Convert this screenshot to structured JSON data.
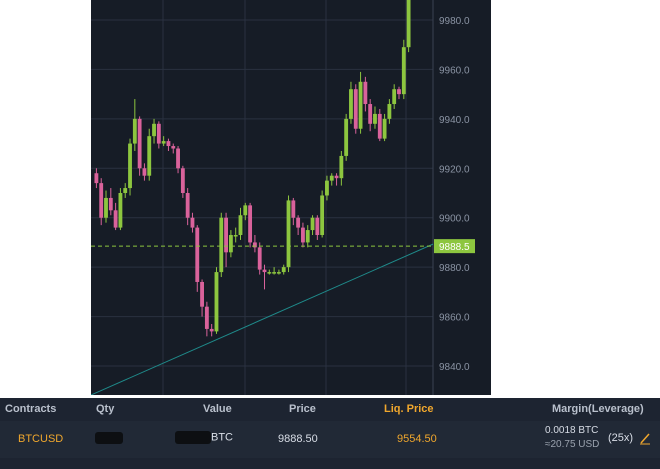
{
  "chart": {
    "price_axis_labels": [
      "9980.0",
      "9960.0",
      "9940.0",
      "9920.0",
      "9900.0",
      "9880.0",
      "9860.0",
      "9840.0"
    ],
    "current_price_label": "9888.5",
    "colors": {
      "background": "#161c26",
      "up": "#8dc63f",
      "down": "#d9629b",
      "grid": "#2a3140",
      "price_line": "#8dc63f",
      "trend_line": "#1f8a8a"
    }
  },
  "chart_data": {
    "type": "candlestick",
    "price_range": [
      9832,
      9987
    ],
    "current_price": 9888.5,
    "candles": [
      [
        9918,
        9914,
        9920,
        9912
      ],
      [
        9914,
        9900,
        9916,
        9897
      ],
      [
        9900,
        9908,
        9911,
        9898
      ],
      [
        9908,
        9903,
        9912,
        9901
      ],
      [
        9903,
        9896,
        9906,
        9895
      ],
      [
        9896,
        9910,
        9912,
        9895
      ],
      [
        9910,
        9912,
        9914,
        9908
      ],
      [
        9912,
        9930,
        9932,
        9909
      ],
      [
        9930,
        9940,
        9948,
        9927
      ],
      [
        9940,
        9920,
        9941,
        9917
      ],
      [
        9920,
        9917,
        9922,
        9915
      ],
      [
        9917,
        9933,
        9936,
        9915
      ],
      [
        9933,
        9938,
        9940,
        9930
      ],
      [
        9938,
        9930,
        9939,
        9928
      ],
      [
        9930,
        9931,
        9933,
        9929
      ],
      [
        9931,
        9929,
        9932,
        9927
      ],
      [
        9929,
        9928,
        9930,
        9926
      ],
      [
        9928,
        9920,
        9929,
        9918
      ],
      [
        9920,
        9910,
        9921,
        9908
      ],
      [
        9910,
        9900,
        9912,
        9897
      ],
      [
        9900,
        9896,
        9902,
        9894
      ],
      [
        9896,
        9874,
        9897,
        9870
      ],
      [
        9874,
        9864,
        9875,
        9860
      ],
      [
        9864,
        9855,
        9866,
        9852
      ],
      [
        9855,
        9854,
        9857,
        9852
      ],
      [
        9854,
        9878,
        9880,
        9853
      ],
      [
        9878,
        9900,
        9902,
        9876
      ],
      [
        9900,
        9886,
        9902,
        9880
      ],
      [
        9886,
        9893,
        9895,
        9884
      ],
      [
        9893,
        9893,
        9896,
        9890
      ],
      [
        9893,
        9901,
        9904,
        9891
      ],
      [
        9901,
        9905,
        9906,
        9899
      ],
      [
        9905,
        9890,
        9906,
        9888
      ],
      [
        9890,
        9888,
        9893,
        9886
      ],
      [
        9888,
        9879,
        9890,
        9877
      ],
      [
        9879,
        9878,
        9881,
        9871
      ],
      [
        9878,
        9878,
        9879,
        9877
      ],
      [
        9878,
        9878,
        9880,
        9877
      ],
      [
        9878,
        9878,
        9879,
        9877
      ],
      [
        9878,
        9880,
        9881,
        9877
      ],
      [
        9880,
        9907,
        9909,
        9878
      ],
      [
        9907,
        9900,
        9908,
        9897
      ],
      [
        9900,
        9896,
        9901,
        9893
      ],
      [
        9896,
        9890,
        9898,
        9888
      ],
      [
        9890,
        9895,
        9897,
        9888
      ],
      [
        9895,
        9900,
        9901,
        9893
      ],
      [
        9900,
        9893,
        9901,
        9891
      ],
      [
        9893,
        9909,
        9911,
        9892
      ],
      [
        9909,
        9915,
        9917,
        9907
      ],
      [
        9915,
        9917,
        9918,
        9913
      ],
      [
        9917,
        9916,
        9918,
        9913
      ],
      [
        9916,
        9925,
        9927,
        9913
      ],
      [
        9925,
        9940,
        9942,
        9923
      ],
      [
        9940,
        9952,
        9955,
        9938
      ],
      [
        9952,
        9936,
        9954,
        9934
      ],
      [
        9936,
        9955,
        9959,
        9934
      ],
      [
        9955,
        9946,
        9957,
        9943
      ],
      [
        9946,
        9938,
        9948,
        9935
      ],
      [
        9938,
        9942,
        9945,
        9936
      ],
      [
        9942,
        9932,
        9944,
        9931
      ],
      [
        9932,
        9940,
        9942,
        9931
      ],
      [
        9940,
        9946,
        9948,
        9938
      ],
      [
        9946,
        9952,
        9954,
        9944
      ],
      [
        9952,
        9950,
        9953,
        9948
      ],
      [
        9950,
        9969,
        9972,
        9948
      ],
      [
        9969,
        9990,
        9992,
        9967
      ]
    ]
  },
  "positions": {
    "headers": {
      "contracts": "Contracts",
      "qty": "Qty",
      "value": "Value",
      "price": "Price",
      "liq_price": "Liq. Price",
      "margin": "Margin(Leverage)"
    },
    "row": {
      "contract": "BTCUSD",
      "value_unit": "BTC",
      "price": "9888.50",
      "liq_price": "9554.50",
      "margin_btc": "0.0018 BTC",
      "margin_usd": "≈20.75 USD",
      "leverage": "(25x)",
      "edit_icon": "pencil-icon"
    },
    "colors": {
      "accent": "#f0a72d"
    }
  }
}
